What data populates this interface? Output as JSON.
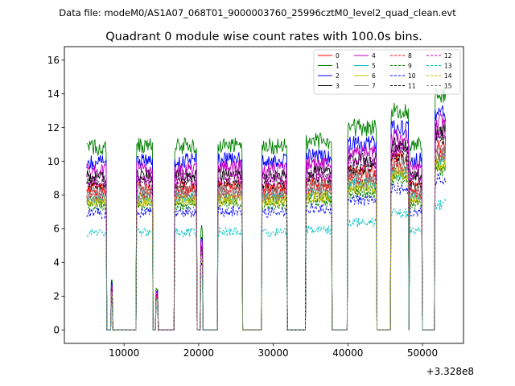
{
  "chart_data": {
    "type": "line",
    "suptitle": "Data file: modeM0/AS1A07_068T01_9000003760_25996cztM0_level2_quad_clean.evt",
    "title": "Quadrant 0 module wise count rates with 100.0s bins.",
    "xlabel": "",
    "ylabel": "",
    "x_offset_label": "+3.328e8",
    "xlim": [
      2000,
      55500
    ],
    "ylim": [
      -0.8,
      16.8
    ],
    "xticks": [
      10000,
      20000,
      30000,
      40000,
      50000
    ],
    "xtick_labels": [
      "10000",
      "20000",
      "30000",
      "40000",
      "50000"
    ],
    "yticks": [
      0,
      2,
      4,
      6,
      8,
      10,
      12,
      14,
      16
    ],
    "ytick_labels": [
      "0",
      "2",
      "4",
      "6",
      "8",
      "10",
      "12",
      "14",
      "16"
    ],
    "legend_position": "top-right",
    "bin_size_s": 100,
    "active_intervals": [
      [
        5000,
        7600
      ],
      [
        8300,
        8400
      ],
      [
        11700,
        13800
      ],
      [
        14300,
        14500
      ],
      [
        16800,
        19700
      ],
      [
        20300,
        20500
      ],
      [
        22600,
        25800
      ],
      [
        28500,
        31800
      ],
      [
        34400,
        37800
      ],
      [
        40000,
        43800
      ],
      [
        45800,
        48100
      ],
      [
        48300,
        49900
      ],
      [
        51700,
        53100
      ]
    ],
    "segment_base_levels": [
      10.8,
      3.0,
      10.9,
      2.5,
      10.9,
      6.0,
      11.0,
      10.9,
      11.2,
      12.0,
      13.0,
      11.0,
      14.0
    ],
    "series": [
      {
        "name": "0",
        "color": "#ff0000",
        "dash": "solid",
        "scale": 0.78
      },
      {
        "name": "1",
        "color": "#008000",
        "dash": "solid",
        "scale": 1.0
      },
      {
        "name": "2",
        "color": "#0000ff",
        "dash": "solid",
        "scale": 0.92
      },
      {
        "name": "3",
        "color": "#000000",
        "dash": "solid",
        "scale": 0.84
      },
      {
        "name": "4",
        "color": "#bf00bf",
        "dash": "solid",
        "scale": 0.88
      },
      {
        "name": "5",
        "color": "#00bfbf",
        "dash": "solid",
        "scale": 0.72
      },
      {
        "name": "6",
        "color": "#bfbf00",
        "dash": "solid",
        "scale": 0.7
      },
      {
        "name": "7",
        "color": "#808080",
        "dash": "solid",
        "scale": 0.76
      },
      {
        "name": "8",
        "color": "#ff0000",
        "dash": "dashed",
        "scale": 0.74
      },
      {
        "name": "9",
        "color": "#008000",
        "dash": "dashed",
        "scale": 0.68
      },
      {
        "name": "10",
        "color": "#0000ff",
        "dash": "dashed",
        "scale": 0.64
      },
      {
        "name": "11",
        "color": "#000000",
        "dash": "dashed",
        "scale": 0.8
      },
      {
        "name": "12",
        "color": "#bf00bf",
        "dash": "dashed",
        "scale": 0.82
      },
      {
        "name": "13",
        "color": "#00bfbf",
        "dash": "dashed",
        "scale": 0.53
      },
      {
        "name": "14",
        "color": "#bfbf00",
        "dash": "dashed",
        "scale": 0.71
      },
      {
        "name": "15",
        "color": "#808080",
        "dash": "dashed",
        "scale": 0.73
      }
    ]
  }
}
